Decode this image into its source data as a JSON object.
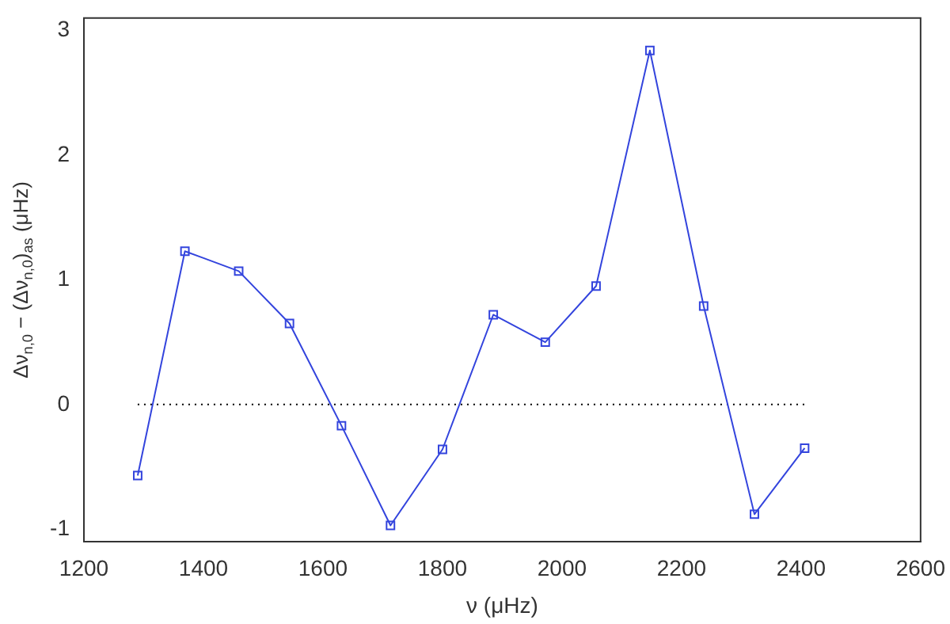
{
  "chart_data": {
    "type": "line",
    "xlabel": "ν (μHz)",
    "ylabel": "Δν$_{n,0}$ − (Δν$_{n,0}$)$_{as}$ (μHz)",
    "xlim": [
      1200,
      2600
    ],
    "xticks": [
      1200,
      1400,
      1600,
      1800,
      2000,
      2200,
      2400,
      2600
    ],
    "ylim": [
      -1.1,
      3.1
    ],
    "yticks": [
      -1,
      0,
      1,
      2,
      3
    ],
    "grid": false,
    "legend": false,
    "series": [
      {
        "color": "#3344dd",
        "marker": "square",
        "line_style": "solid",
        "x": [
          1290,
          1369,
          1459,
          1544,
          1631,
          1713,
          1800,
          1885,
          1972,
          2057,
          2147,
          2237,
          2322,
          2406
        ],
        "values": [
          -0.57,
          1.23,
          1.07,
          0.65,
          -0.17,
          -0.97,
          -0.36,
          0.72,
          0.5,
          0.95,
          2.84,
          0.79,
          -0.88,
          -0.35
        ]
      },
      {
        "color": "#000000",
        "marker": "none",
        "line_style": "dotted",
        "x": [
          1290,
          2410
        ],
        "values": [
          0,
          0
        ]
      }
    ]
  }
}
